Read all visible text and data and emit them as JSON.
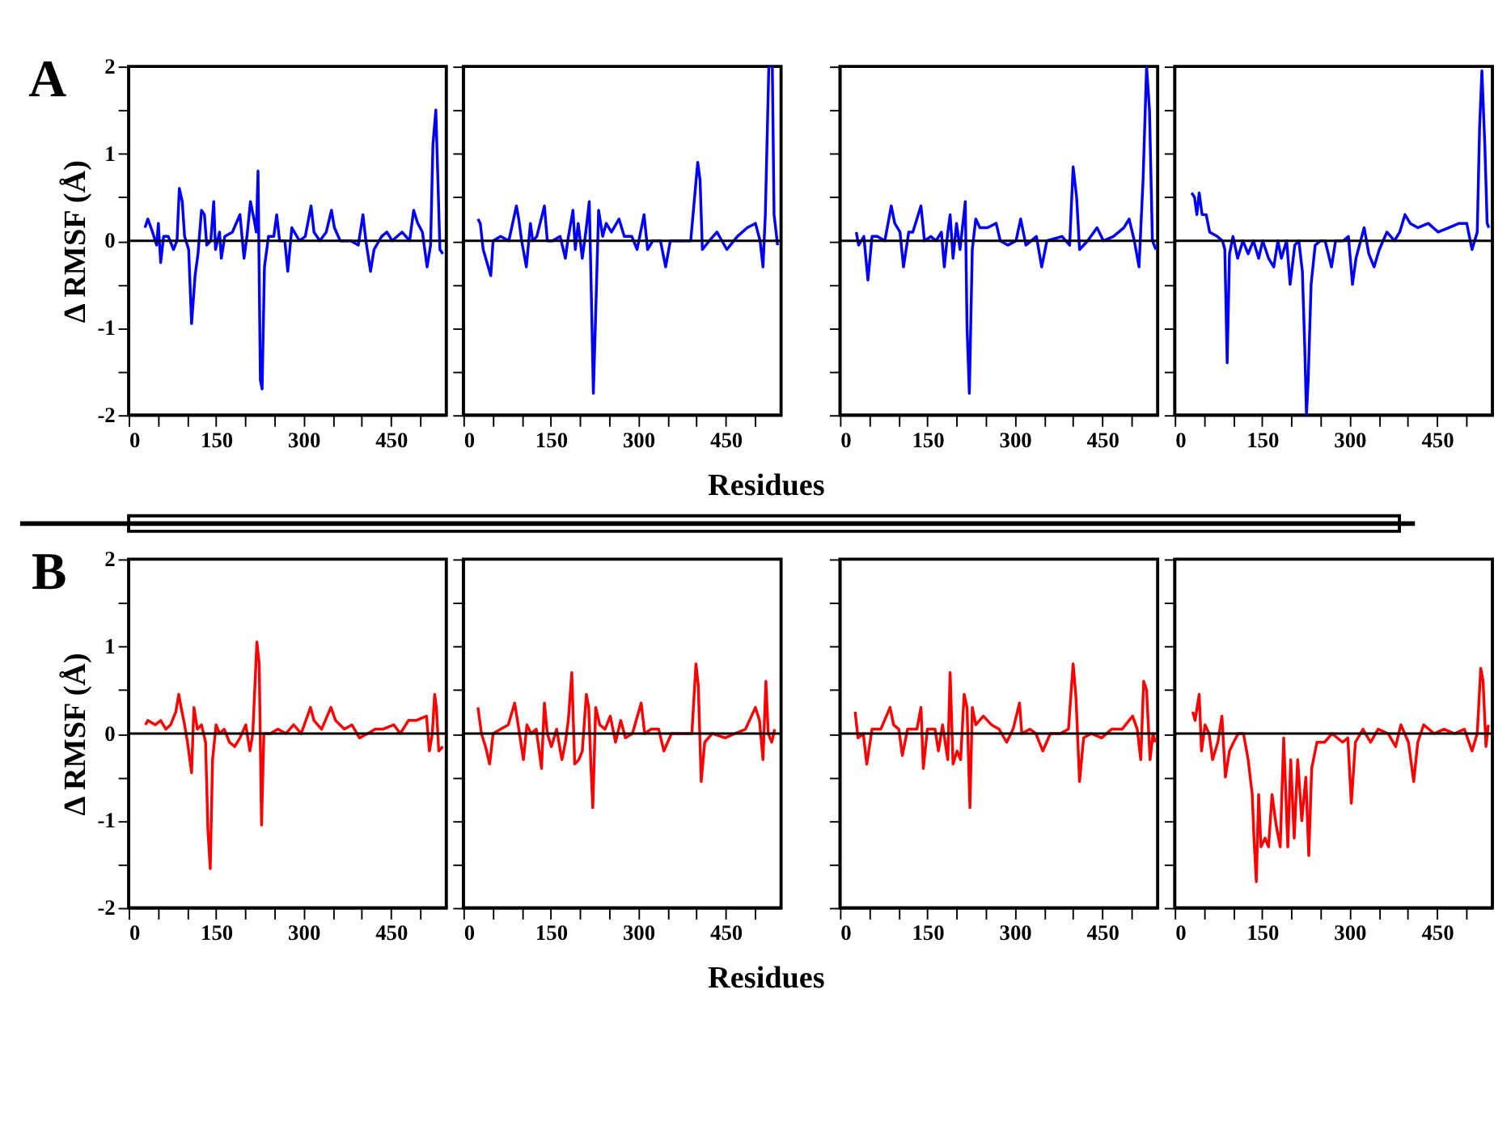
{
  "chart_data": [
    {
      "type": "line",
      "annotations": [
        "A"
      ],
      "ylabel": "Δ RMSF (Å)",
      "xlim": [
        0,
        545
      ],
      "ylim": [
        -2,
        2
      ],
      "xticks": [
        0,
        {
          "value": 50,
          "label": null
        },
        {
          "value": 100,
          "label": null
        },
        150,
        {
          "value": 200,
          "label": null
        },
        {
          "value": 250,
          "label": null
        },
        300,
        {
          "value": 350,
          "label": null
        },
        {
          "value": 400,
          "label": null
        },
        450,
        {
          "value": 500,
          "label": null
        }
      ],
      "yticks": [
        -2,
        {
          "value": -1.5,
          "label": null
        },
        -1,
        {
          "value": -0.5,
          "label": null
        },
        0,
        {
          "value": 0.5,
          "label": null
        },
        1,
        {
          "value": 1.5,
          "label": null
        },
        2
      ],
      "ref_lines": [
        {
          "axis": "y",
          "value": 0,
          "color": "#000000"
        }
      ],
      "series": [
        {
          "color": "#0000ff",
          "x": [
            28,
            33,
            41,
            48,
            51,
            55,
            60,
            68,
            77,
            83,
            87,
            92,
            96,
            103,
            108,
            114,
            119,
            125,
            130,
            134,
            141,
            146,
            149,
            156,
            159,
            165,
            178,
            191,
            198,
            203,
            209,
            215,
            219,
            222,
            226,
            229,
            233,
            240,
            249,
            254,
            259,
            268,
            273,
            280,
            293,
            303,
            313,
            318,
            328,
            339,
            348,
            353,
            363,
            381,
            394,
            402,
            407,
            415,
            421,
            434,
            443,
            452,
            469,
            482,
            489,
            496,
            504,
            512,
            518,
            522,
            527,
            531,
            534,
            539
          ],
          "values": [
            0.15,
            0.25,
            0.1,
            -0.05,
            0.2,
            -0.25,
            0.05,
            0.05,
            -0.1,
            0.0,
            0.6,
            0.45,
            0.05,
            -0.1,
            -0.95,
            -0.4,
            -0.15,
            0.35,
            0.3,
            -0.05,
            0.0,
            0.45,
            -0.1,
            0.1,
            -0.2,
            0.05,
            0.1,
            0.3,
            -0.2,
            0.05,
            0.45,
            0.25,
            0.1,
            0.8,
            -1.6,
            -1.7,
            -0.3,
            0.05,
            0.05,
            0.3,
            0.0,
            0.0,
            -0.35,
            0.15,
            0.0,
            0.05,
            0.4,
            0.1,
            0.0,
            0.1,
            0.35,
            0.15,
            0.0,
            0.0,
            -0.05,
            0.3,
            0.0,
            -0.35,
            -0.1,
            0.05,
            0.1,
            0.0,
            0.1,
            0.0,
            0.35,
            0.2,
            0.1,
            -0.3,
            -0.05,
            1.1,
            1.5,
            0.6,
            -0.1,
            -0.15
          ]
        }
      ]
    },
    {
      "type": "line",
      "tick_labels": "x",
      "xlim": [
        0,
        545
      ],
      "ylim": [
        -2,
        2
      ],
      "xticks": [
        0,
        {
          "value": 50,
          "label": null
        },
        {
          "value": 100,
          "label": null
        },
        150,
        {
          "value": 200,
          "label": null
        },
        {
          "value": 250,
          "label": null
        },
        300,
        {
          "value": 350,
          "label": null
        },
        {
          "value": 400,
          "label": null
        },
        450,
        {
          "value": 500,
          "label": null
        }
      ],
      "yticks": [
        -2,
        {
          "value": -1.5,
          "label": null
        },
        -1,
        {
          "value": -0.5,
          "label": null
        },
        0,
        {
          "value": 0.5,
          "label": null
        },
        1,
        {
          "value": 1.5,
          "label": null
        },
        2
      ],
      "ref_lines": [
        {
          "axis": "y",
          "value": 0,
          "color": "#000000"
        }
      ],
      "xlabel": "Residues",
      "series": [
        {
          "color": "#0000ff",
          "x": [
            25,
            29,
            34,
            47,
            51,
            64,
            78,
            91,
            95,
            100,
            108,
            115,
            119,
            126,
            139,
            144,
            153,
            166,
            175,
            179,
            188,
            192,
            197,
            204,
            210,
            216,
            219,
            223,
            228,
            232,
            239,
            245,
            254,
            267,
            276,
            289,
            298,
            310,
            316,
            325,
            338,
            347,
            355,
            373,
            390,
            402,
            406,
            410,
            422,
            435,
            452,
            470,
            487,
            501,
            509,
            514,
            518,
            524,
            530,
            533,
            539
          ],
          "values": [
            0.25,
            0.2,
            -0.1,
            -0.4,
            0.0,
            0.05,
            0.0,
            0.4,
            0.25,
            0.0,
            -0.3,
            0.2,
            0.0,
            0.05,
            0.4,
            0.0,
            0.0,
            0.05,
            -0.2,
            0.0,
            0.35,
            -0.1,
            0.2,
            -0.2,
            0.1,
            0.45,
            -0.45,
            -1.75,
            -0.6,
            0.35,
            0.05,
            0.2,
            0.1,
            0.25,
            0.05,
            0.05,
            -0.1,
            0.3,
            -0.1,
            0.0,
            0.0,
            -0.3,
            0.0,
            0.0,
            0.0,
            0.9,
            0.7,
            -0.1,
            0.0,
            0.1,
            -0.1,
            0.05,
            0.15,
            0.2,
            0.0,
            -0.3,
            0.3,
            2.0,
            2.0,
            0.3,
            -0.05
          ]
        }
      ]
    },
    {
      "type": "line",
      "tick_labels": "x",
      "xlim": [
        0,
        545
      ],
      "ylim": [
        -2,
        2
      ],
      "xticks": [
        0,
        {
          "value": 50,
          "label": null
        },
        {
          "value": 100,
          "label": null
        },
        150,
        {
          "value": 200,
          "label": null
        },
        {
          "value": 250,
          "label": null
        },
        300,
        {
          "value": 350,
          "label": null
        },
        {
          "value": 400,
          "label": null
        },
        450,
        {
          "value": 500,
          "label": null
        }
      ],
      "yticks": [
        -2,
        {
          "value": -1.5,
          "label": null
        },
        -1,
        {
          "value": -0.5,
          "label": null
        },
        0,
        {
          "value": 0.5,
          "label": null
        },
        1,
        {
          "value": 1.5,
          "label": null
        },
        2
      ],
      "ref_lines": [
        {
          "axis": "y",
          "value": 0,
          "color": "#000000"
        }
      ],
      "series": [
        {
          "color": "#0000ff",
          "x": [
            28,
            32,
            41,
            48,
            55,
            64,
            77,
            88,
            94,
            103,
            109,
            118,
            125,
            139,
            145,
            156,
            165,
            174,
            179,
            185,
            189,
            194,
            200,
            206,
            215,
            218,
            222,
            227,
            233,
            240,
            253,
            268,
            275,
            288,
            302,
            310,
            319,
            337,
            346,
            355,
            381,
            394,
            400,
            406,
            411,
            425,
            441,
            452,
            469,
            487,
            496,
            505,
            513,
            520,
            526,
            531,
            536,
            542
          ],
          "values": [
            0.1,
            -0.05,
            0.05,
            -0.45,
            0.05,
            0.05,
            0.0,
            0.4,
            0.2,
            0.1,
            -0.3,
            0.1,
            0.1,
            0.4,
            0.0,
            0.05,
            0.0,
            0.1,
            -0.3,
            0.1,
            0.3,
            -0.2,
            0.2,
            -0.1,
            0.45,
            -1.0,
            -1.75,
            -0.1,
            0.25,
            0.15,
            0.15,
            0.2,
            0.0,
            -0.05,
            0.0,
            0.25,
            -0.05,
            0.05,
            -0.3,
            0.0,
            0.05,
            -0.05,
            0.85,
            0.5,
            -0.1,
            0.0,
            0.15,
            0.0,
            0.05,
            0.15,
            0.25,
            0.0,
            -0.3,
            0.7,
            2.0,
            1.5,
            0.0,
            -0.1
          ]
        }
      ]
    },
    {
      "type": "line",
      "tick_labels": "x",
      "xlim": [
        0,
        545
      ],
      "ylim": [
        -2,
        2
      ],
      "xticks": [
        0,
        {
          "value": 50,
          "label": null
        },
        {
          "value": 100,
          "label": null
        },
        150,
        {
          "value": 200,
          "label": null
        },
        {
          "value": 250,
          "label": null
        },
        300,
        {
          "value": 350,
          "label": null
        },
        {
          "value": 400,
          "label": null
        },
        450,
        {
          "value": 500,
          "label": null
        }
      ],
      "yticks": [
        -2,
        {
          "value": -1.5,
          "label": null
        },
        -1,
        {
          "value": -0.5,
          "label": null
        },
        0,
        {
          "value": 0.5,
          "label": null
        },
        1,
        {
          "value": 1.5,
          "label": null
        },
        2
      ],
      "ref_lines": [
        {
          "axis": "y",
          "value": 0,
          "color": "#000000"
        }
      ],
      "series": [
        {
          "color": "#0000ff",
          "x": [
            29,
            34,
            38,
            42,
            47,
            54,
            60,
            73,
            82,
            86,
            90,
            94,
            100,
            108,
            117,
            126,
            135,
            144,
            151,
            161,
            170,
            177,
            183,
            192,
            198,
            206,
            213,
            219,
            223,
            226,
            229,
            234,
            241,
            250,
            258,
            269,
            276,
            289,
            298,
            305,
            311,
            325,
            333,
            342,
            351,
            364,
            377,
            386,
            395,
            404,
            417,
            435,
            452,
            470,
            488,
            501,
            510,
            519,
            523,
            527,
            532,
            536,
            539
          ],
          "values": [
            0.55,
            0.5,
            0.3,
            0.55,
            0.3,
            0.3,
            0.1,
            0.05,
            0.0,
            -0.1,
            -1.4,
            -0.15,
            0.05,
            -0.2,
            0.0,
            -0.15,
            0.0,
            -0.2,
            0.0,
            -0.2,
            -0.3,
            0.0,
            -0.2,
            0.0,
            -0.5,
            -0.05,
            0.0,
            -0.35,
            -1.2,
            -2.0,
            -1.6,
            -0.5,
            -0.05,
            0.0,
            0.0,
            -0.3,
            0.0,
            0.0,
            0.05,
            -0.5,
            -0.2,
            0.15,
            -0.15,
            -0.3,
            -0.1,
            0.1,
            0.0,
            0.1,
            0.3,
            0.2,
            0.15,
            0.2,
            0.1,
            0.15,
            0.2,
            0.2,
            -0.1,
            0.1,
            1.3,
            1.95,
            1.1,
            0.2,
            0.15
          ]
        }
      ]
    },
    {
      "type": "line",
      "annotations": [
        "B"
      ],
      "ylabel": "Δ RMSF (Å)",
      "xlim": [
        0,
        545
      ],
      "ylim": [
        -2,
        2
      ],
      "xticks": [
        0,
        {
          "value": 50,
          "label": null
        },
        {
          "value": 100,
          "label": null
        },
        150,
        {
          "value": 200,
          "label": null
        },
        {
          "value": 250,
          "label": null
        },
        300,
        {
          "value": 350,
          "label": null
        },
        {
          "value": 400,
          "label": null
        },
        450,
        {
          "value": 500,
          "label": null
        }
      ],
      "yticks": [
        -2,
        {
          "value": -1.5,
          "label": null
        },
        -1,
        {
          "value": -0.5,
          "label": null
        },
        0,
        {
          "value": 0.5,
          "label": null
        },
        1,
        {
          "value": 1.5,
          "label": null
        },
        2
      ],
      "ref_lines": [
        {
          "axis": "y",
          "value": 0,
          "color": "#000000"
        }
      ],
      "series": [
        {
          "color": "#ff0000",
          "x": [
            29,
            33,
            46,
            55,
            64,
            72,
            81,
            86,
            90,
            96,
            101,
            108,
            112,
            118,
            125,
            132,
            136,
            140,
            144,
            150,
            156,
            164,
            173,
            182,
            191,
            201,
            208,
            213,
            220,
            224,
            228,
            232,
            243,
            256,
            270,
            283,
            296,
            312,
            318,
            331,
            347,
            355,
            370,
            383,
            396,
            410,
            423,
            436,
            455,
            466,
            480,
            493,
            511,
            516,
            521,
            525,
            528,
            532,
            539
          ],
          "values": [
            0.1,
            0.15,
            0.1,
            0.15,
            0.05,
            0.1,
            0.25,
            0.45,
            0.3,
            0.1,
            -0.1,
            -0.45,
            0.3,
            0.05,
            0.1,
            -0.1,
            -1.1,
            -1.55,
            -0.3,
            0.1,
            0.0,
            0.05,
            -0.1,
            -0.15,
            -0.05,
            0.1,
            -0.2,
            0.0,
            1.05,
            0.8,
            -1.05,
            0.0,
            0.0,
            0.05,
            0.0,
            0.1,
            0.0,
            0.3,
            0.15,
            0.05,
            0.3,
            0.15,
            0.05,
            0.1,
            -0.05,
            0.0,
            0.05,
            0.05,
            0.1,
            0.0,
            0.15,
            0.15,
            0.2,
            -0.2,
            0.0,
            0.45,
            0.3,
            -0.2,
            -0.15
          ]
        }
      ]
    },
    {
      "type": "line",
      "tick_labels": "x",
      "xlim": [
        0,
        545
      ],
      "ylim": [
        -2,
        2
      ],
      "xticks": [
        0,
        {
          "value": 50,
          "label": null
        },
        {
          "value": 100,
          "label": null
        },
        150,
        {
          "value": 200,
          "label": null
        },
        {
          "value": 250,
          "label": null
        },
        300,
        {
          "value": 350,
          "label": null
        },
        {
          "value": 400,
          "label": null
        },
        450,
        {
          "value": 500,
          "label": null
        }
      ],
      "yticks": [
        -2,
        {
          "value": -1.5,
          "label": null
        },
        -1,
        {
          "value": -0.5,
          "label": null
        },
        0,
        {
          "value": 0.5,
          "label": null
        },
        1,
        {
          "value": 1.5,
          "label": null
        },
        2
      ],
      "ref_lines": [
        {
          "axis": "y",
          "value": 0,
          "color": "#000000"
        }
      ],
      "xlabel": "Residues",
      "series": [
        {
          "color": "#ff0000",
          "x": [
            25,
            31,
            38,
            45,
            51,
            64,
            77,
            88,
            94,
            103,
            109,
            116,
            125,
            134,
            139,
            144,
            151,
            160,
            169,
            175,
            180,
            186,
            191,
            198,
            204,
            211,
            215,
            219,
            222,
            227,
            234,
            243,
            252,
            261,
            270,
            278,
            290,
            305,
            311,
            322,
            335,
            344,
            357,
            375,
            392,
            399,
            403,
            408,
            414,
            427,
            449,
            466,
            484,
            501,
            508,
            514,
            519,
            523,
            529,
            534
          ],
          "values": [
            0.3,
            0.0,
            -0.15,
            -0.35,
            0.0,
            0.05,
            0.1,
            0.35,
            0.1,
            -0.3,
            0.1,
            0.0,
            0.05,
            -0.4,
            0.35,
            0.0,
            -0.15,
            0.05,
            -0.3,
            -0.1,
            0.15,
            0.7,
            -0.35,
            -0.3,
            -0.2,
            0.45,
            0.3,
            -0.4,
            -0.85,
            0.3,
            0.1,
            0.05,
            0.2,
            -0.1,
            0.15,
            -0.05,
            0.0,
            0.35,
            0.0,
            0.05,
            0.05,
            -0.2,
            0.0,
            0.0,
            0.0,
            0.8,
            0.55,
            -0.55,
            -0.1,
            0.0,
            -0.05,
            0.0,
            0.05,
            0.3,
            0.15,
            -0.3,
            0.6,
            0.0,
            -0.1,
            0.05
          ]
        }
      ]
    },
    {
      "type": "line",
      "tick_labels": "x",
      "xlim": [
        0,
        545
      ],
      "ylim": [
        -2,
        2
      ],
      "xticks": [
        0,
        {
          "value": 50,
          "label": null
        },
        {
          "value": 100,
          "label": null
        },
        150,
        {
          "value": 200,
          "label": null
        },
        {
          "value": 250,
          "label": null
        },
        300,
        {
          "value": 350,
          "label": null
        },
        {
          "value": 400,
          "label": null
        },
        450,
        {
          "value": 500,
          "label": null
        }
      ],
      "yticks": [
        -2,
        {
          "value": -1.5,
          "label": null
        },
        -1,
        {
          "value": -0.5,
          "label": null
        },
        0,
        {
          "value": 0.5,
          "label": null
        },
        1,
        {
          "value": 1.5,
          "label": null
        },
        2
      ],
      "ref_lines": [
        {
          "axis": "y",
          "value": 0,
          "color": "#000000"
        }
      ],
      "series": [
        {
          "color": "#ff0000",
          "x": [
            26,
            31,
            40,
            46,
            55,
            70,
            86,
            92,
            101,
            107,
            116,
            132,
            139,
            143,
            150,
            163,
            169,
            176,
            185,
            189,
            194,
            201,
            207,
            213,
            218,
            223,
            227,
            233,
            246,
            260,
            273,
            286,
            297,
            308,
            312,
            326,
            336,
            348,
            361,
            378,
            392,
            400,
            405,
            411,
            418,
            431,
            449,
            466,
            484,
            502,
            510,
            516,
            521,
            526,
            532,
            537,
            541
          ],
          "values": [
            0.25,
            -0.05,
            0.0,
            -0.35,
            0.05,
            0.05,
            0.3,
            0.1,
            0.05,
            -0.25,
            0.05,
            0.05,
            0.3,
            -0.4,
            0.05,
            0.05,
            -0.2,
            0.1,
            -0.3,
            0.7,
            -0.35,
            -0.2,
            -0.3,
            0.45,
            0.3,
            -0.85,
            0.3,
            0.1,
            0.2,
            0.1,
            0.05,
            -0.1,
            0.05,
            0.35,
            0.0,
            0.05,
            0.0,
            -0.2,
            0.0,
            0.0,
            0.05,
            0.8,
            0.4,
            -0.55,
            -0.05,
            0.0,
            -0.05,
            0.05,
            0.05,
            0.2,
            0.05,
            -0.3,
            0.6,
            0.5,
            -0.3,
            0.0,
            -0.1
          ]
        }
      ]
    },
    {
      "type": "line",
      "tick_labels": "x",
      "xlim": [
        0,
        545
      ],
      "ylim": [
        -2,
        2
      ],
      "xticks": [
        0,
        {
          "value": 50,
          "label": null
        },
        {
          "value": 100,
          "label": null
        },
        150,
        {
          "value": 200,
          "label": null
        },
        {
          "value": 250,
          "label": null
        },
        300,
        {
          "value": 350,
          "label": null
        },
        {
          "value": 400,
          "label": null
        },
        450,
        {
          "value": 500,
          "label": null
        }
      ],
      "yticks": [
        -2,
        {
          "value": -1.5,
          "label": null
        },
        -1,
        {
          "value": -0.5,
          "label": null
        },
        0,
        {
          "value": 0.5,
          "label": null
        },
        1,
        {
          "value": 1.5,
          "label": null
        },
        2
      ],
      "ref_lines": [
        {
          "axis": "y",
          "value": 0,
          "color": "#000000"
        }
      ],
      "series": [
        {
          "color": "#ff0000",
          "x": [
            31,
            35,
            42,
            46,
            52,
            59,
            65,
            74,
            81,
            87,
            94,
            101,
            109,
            118,
            126,
            133,
            136,
            140,
            144,
            148,
            155,
            161,
            167,
            174,
            181,
            187,
            194,
            199,
            205,
            211,
            218,
            225,
            230,
            235,
            244,
            257,
            270,
            288,
            297,
            303,
            310,
            323,
            336,
            349,
            366,
            379,
            388,
            401,
            410,
            417,
            427,
            445,
            462,
            480,
            497,
            510,
            519,
            525,
            529,
            534,
            538
          ],
          "values": [
            0.25,
            0.15,
            0.45,
            -0.2,
            0.1,
            0.0,
            -0.3,
            -0.1,
            0.2,
            -0.5,
            -0.2,
            -0.1,
            0.0,
            0.0,
            -0.3,
            -0.7,
            -1.2,
            -1.7,
            -0.7,
            -1.3,
            -1.2,
            -1.3,
            -0.7,
            -1.05,
            -1.3,
            -0.05,
            -1.3,
            -0.3,
            -1.2,
            -0.3,
            -1.0,
            -0.5,
            -1.4,
            -0.4,
            -0.1,
            -0.1,
            0.0,
            -0.1,
            -0.05,
            -0.8,
            -0.1,
            0.05,
            -0.1,
            0.05,
            0.0,
            -0.15,
            0.1,
            -0.1,
            -0.55,
            -0.1,
            0.1,
            0.0,
            0.05,
            0.0,
            0.05,
            -0.2,
            0.0,
            0.75,
            0.6,
            -0.15,
            0.1
          ]
        }
      ]
    }
  ]
}
